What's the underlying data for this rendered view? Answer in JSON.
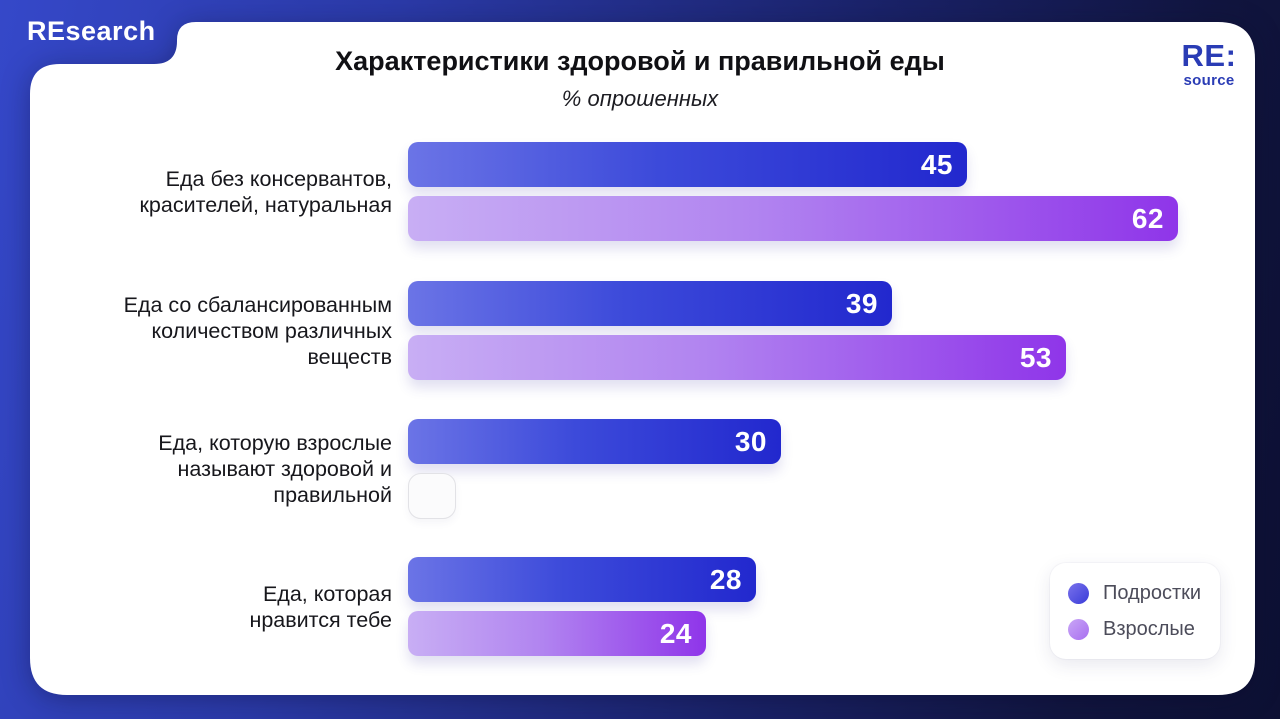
{
  "brand": {
    "header_logo": "REsearch",
    "corner_logo_line1": "RE:",
    "corner_logo_line2": "source"
  },
  "chart_data": {
    "type": "bar",
    "orientation": "horizontal",
    "title": "Характеристики здоровой и правильной еды",
    "subtitle": "% опрошенных",
    "xlim": [
      0,
      62
    ],
    "grid": false,
    "legend_position": "bottom-right",
    "categories": [
      "Еда без консервантов, красителей, натуральная",
      "Еда со сбалансированным количеством различных веществ",
      "Еда, которую взрослые называют здоровой и правильной",
      "Еда, которая нравится тебе"
    ],
    "category_label_lines": [
      [
        "Еда без консервантов,",
        "красителей, натуральная"
      ],
      [
        "Еда со сбалансированным",
        "количеством различных",
        "веществ"
      ],
      [
        "Еда, которую взрослые",
        "называют здоровой и",
        "правильной"
      ],
      [
        "Еда, которая",
        "нравится тебе"
      ]
    ],
    "series": [
      {
        "name": "Подростки",
        "values": [
          45,
          39,
          30,
          28
        ],
        "gradient": [
          "#6b74e6",
          "#2228ce"
        ]
      },
      {
        "name": "Взрослые",
        "values": [
          62,
          53,
          null,
          24
        ],
        "gradient": [
          "#c8aef4",
          "#8f35e9"
        ]
      }
    ],
    "missing_value_marker": "empty outlined box"
  },
  "colors": {
    "card": "#ffffff",
    "background_start": "#3548c9",
    "background_end": "#0d1033",
    "logo_blue": "#2a3cb5",
    "value_text": "#ffffff",
    "legend_text": "#4c4c5a"
  }
}
